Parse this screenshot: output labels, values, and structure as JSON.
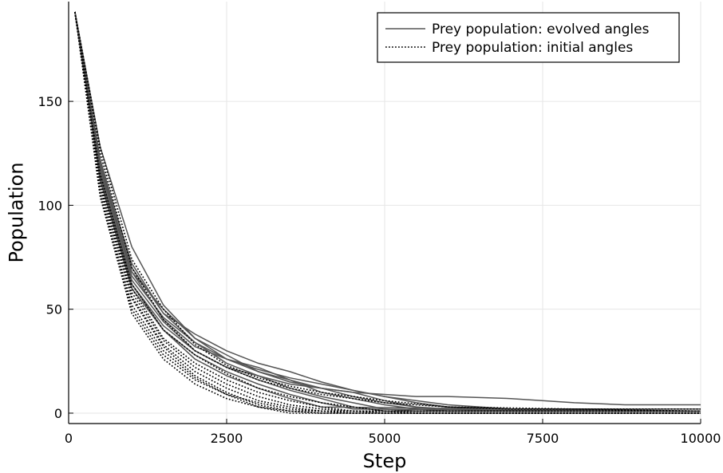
{
  "chart_data": {
    "type": "line",
    "title": "",
    "xlabel": "Step",
    "ylabel": "Population",
    "xlim": [
      0,
      10000
    ],
    "ylim": [
      -5,
      198
    ],
    "xticks": [
      0,
      2500,
      5000,
      7500,
      10000
    ],
    "yticks": [
      0,
      50,
      100,
      150
    ],
    "grid": true,
    "legend_position": "top-right",
    "legend": [
      {
        "label": "Prey population: evolved angles",
        "style": "solid",
        "color": "#555555"
      },
      {
        "label": "Prey population: initial angles",
        "style": "dotted",
        "color": "#000000"
      }
    ],
    "series": [
      {
        "group": "evolved",
        "style": "solid",
        "x": [
          100,
          500,
          1000,
          1500,
          2000,
          2500,
          3000,
          3500,
          4000,
          4500,
          5000,
          5500,
          6000,
          7000,
          8000,
          8800,
          10000
        ],
        "y": [
          193,
          118,
          68,
          50,
          36,
          28,
          20,
          15,
          12,
          10,
          9,
          8,
          8,
          7,
          5,
          4,
          4
        ]
      },
      {
        "group": "evolved",
        "style": "solid",
        "x": [
          100,
          500,
          1000,
          1500,
          2000,
          2500,
          3000,
          3500,
          4000,
          4500,
          5000,
          5500,
          6000,
          7000,
          8000,
          10000
        ],
        "y": [
          193,
          122,
          70,
          48,
          38,
          30,
          24,
          20,
          15,
          11,
          8,
          5,
          3,
          2,
          1,
          1
        ]
      },
      {
        "group": "evolved",
        "style": "solid",
        "x": [
          100,
          500,
          1000,
          1500,
          2000,
          2500,
          3000,
          3500,
          4000,
          4500,
          5000,
          5500,
          6000,
          7000,
          10000
        ],
        "y": [
          193,
          128,
          80,
          52,
          36,
          26,
          20,
          16,
          12,
          8,
          5,
          3,
          2,
          1,
          1
        ]
      },
      {
        "group": "evolved",
        "style": "solid",
        "x": [
          100,
          500,
          1000,
          1500,
          2000,
          2500,
          3000,
          3500,
          4000,
          4500,
          5000,
          5500,
          6000,
          10000
        ],
        "y": [
          193,
          120,
          68,
          45,
          32,
          26,
          22,
          16,
          10,
          7,
          4,
          2,
          1,
          1
        ]
      },
      {
        "group": "evolved",
        "style": "solid",
        "x": [
          100,
          500,
          1000,
          1500,
          2000,
          2500,
          3000,
          3500,
          4000,
          4500,
          5000,
          5500,
          10000
        ],
        "y": [
          193,
          115,
          62,
          42,
          30,
          22,
          18,
          12,
          8,
          5,
          2,
          1,
          1
        ]
      },
      {
        "group": "evolved",
        "style": "solid",
        "x": [
          100,
          500,
          1000,
          1500,
          2000,
          2500,
          3000,
          3500,
          4000,
          4500,
          5000,
          10000
        ],
        "y": [
          193,
          116,
          64,
          44,
          30,
          22,
          16,
          11,
          7,
          3,
          1,
          1
        ]
      },
      {
        "group": "evolved",
        "style": "solid",
        "x": [
          100,
          500,
          1000,
          1500,
          2000,
          2500,
          3000,
          3500,
          4000,
          4500,
          10000
        ],
        "y": [
          193,
          112,
          60,
          40,
          28,
          20,
          14,
          9,
          5,
          2,
          1
        ]
      },
      {
        "group": "evolved",
        "style": "solid",
        "x": [
          100,
          500,
          1000,
          1500,
          2000,
          2500,
          3000,
          3500,
          4000,
          10000
        ],
        "y": [
          193,
          114,
          62,
          40,
          26,
          18,
          12,
          7,
          3,
          1
        ]
      },
      {
        "group": "evolved",
        "style": "solid",
        "x": [
          100,
          500,
          1000,
          1500,
          2000,
          2500,
          3000,
          3500,
          4000,
          4500,
          5000,
          6000,
          7000,
          10000
        ],
        "y": [
          193,
          118,
          66,
          46,
          34,
          26,
          21,
          17,
          14,
          11,
          8,
          4,
          2,
          2
        ]
      },
      {
        "group": "evolved",
        "style": "solid",
        "x": [
          100,
          500,
          1000,
          1500,
          2000,
          2500,
          3000,
          3500,
          4000,
          4500,
          5000,
          5500,
          6000,
          10000
        ],
        "y": [
          193,
          120,
          72,
          48,
          34,
          24,
          18,
          14,
          12,
          10,
          6,
          3,
          1,
          1
        ]
      },
      {
        "group": "initial",
        "style": "dotted",
        "x": [
          100,
          500,
          1000,
          1500,
          2000,
          2500,
          3000,
          3500,
          4000,
          10000
        ],
        "y": [
          193,
          105,
          50,
          28,
          16,
          9,
          5,
          2,
          1,
          1
        ]
      },
      {
        "group": "initial",
        "style": "dotted",
        "x": [
          100,
          500,
          1000,
          1500,
          2000,
          2500,
          3000,
          3500,
          10000
        ],
        "y": [
          193,
          108,
          55,
          32,
          18,
          10,
          4,
          1,
          1
        ]
      },
      {
        "group": "initial",
        "style": "dotted",
        "x": [
          100,
          500,
          1000,
          1500,
          2000,
          2500,
          3000,
          3500,
          4000,
          4500,
          10000
        ],
        "y": [
          193,
          110,
          58,
          35,
          22,
          14,
          8,
          4,
          2,
          1,
          1
        ]
      },
      {
        "group": "initial",
        "style": "dotted",
        "x": [
          100,
          500,
          1000,
          1500,
          2000,
          2500,
          3000,
          3500,
          4000,
          4500,
          5000,
          10000
        ],
        "y": [
          193,
          112,
          60,
          36,
          24,
          16,
          10,
          6,
          3,
          1,
          0,
          0
        ]
      },
      {
        "group": "initial",
        "style": "dotted",
        "x": [
          100,
          500,
          1000,
          1500,
          2000,
          2500,
          3000,
          3500,
          4000,
          4500,
          5000,
          5500,
          10000
        ],
        "y": [
          193,
          115,
          62,
          40,
          28,
          19,
          12,
          8,
          5,
          3,
          1,
          0,
          0
        ]
      },
      {
        "group": "initial",
        "style": "dotted",
        "x": [
          100,
          500,
          1000,
          1500,
          2000,
          2500,
          3000,
          3500,
          10000
        ],
        "y": [
          193,
          106,
          52,
          30,
          17,
          9,
          3,
          0,
          0
        ]
      },
      {
        "group": "initial",
        "style": "dotted",
        "x": [
          100,
          500,
          1000,
          1500,
          2000,
          2500,
          3000,
          3500,
          4000,
          5000,
          10000
        ],
        "y": [
          193,
          104,
          48,
          26,
          14,
          7,
          3,
          1,
          0,
          0,
          0
        ]
      },
      {
        "group": "initial",
        "style": "dotted",
        "x": [
          100,
          500,
          1000,
          1500,
          2000,
          2500,
          3000,
          3500,
          4000,
          4500,
          10000
        ],
        "y": [
          193,
          109,
          56,
          33,
          20,
          12,
          6,
          3,
          1,
          0,
          0
        ]
      },
      {
        "group": "initial",
        "style": "dotted",
        "x": [
          100,
          500,
          1000,
          1500,
          2000,
          2500,
          3000,
          3500,
          4000,
          4500,
          5000,
          6000,
          7000,
          10000
        ],
        "y": [
          193,
          125,
          70,
          45,
          30,
          22,
          16,
          12,
          9,
          7,
          5,
          3,
          2,
          2
        ]
      },
      {
        "group": "initial",
        "style": "dotted",
        "x": [
          100,
          500,
          1000,
          1500,
          2000,
          2500,
          3000,
          3500,
          4000,
          4500,
          5000,
          6000,
          10000
        ],
        "y": [
          193,
          128,
          74,
          50,
          33,
          23,
          17,
          13,
          10,
          8,
          6,
          3,
          1
        ]
      }
    ]
  }
}
